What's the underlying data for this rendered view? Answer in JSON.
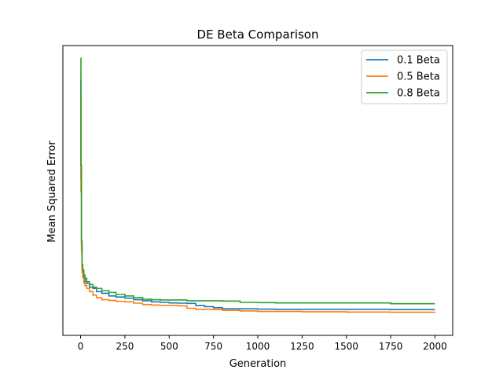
{
  "chart_data": {
    "type": "line",
    "title": "DE Beta Comparison",
    "xlabel": "Generation",
    "ylabel": "Mean Squared Error",
    "xlim": [
      -100,
      2100
    ],
    "ylim": [
      0,
      1
    ],
    "xticks": [
      0,
      250,
      500,
      750,
      1000,
      1250,
      1500,
      1750,
      2000
    ],
    "yticks_shown": false,
    "grid": false,
    "legend_position": "top-right",
    "series": [
      {
        "name": "0.1 Beta",
        "color": "#1f77b4",
        "x": [
          0,
          2,
          5,
          8,
          12,
          18,
          25,
          35,
          50,
          70,
          90,
          120,
          160,
          200,
          250,
          300,
          350,
          400,
          450,
          500,
          550,
          600,
          650,
          700,
          750,
          800,
          900,
          1000,
          1100,
          1250,
          1500,
          1750,
          2000
        ],
        "y": [
          0.92,
          0.55,
          0.3,
          0.22,
          0.2,
          0.18,
          0.165,
          0.158,
          0.145,
          0.14,
          0.128,
          0.122,
          0.112,
          0.108,
          0.104,
          0.098,
          0.094,
          0.09,
          0.088,
          0.086,
          0.085,
          0.084,
          0.076,
          0.072,
          0.068,
          0.064,
          0.064,
          0.063,
          0.062,
          0.062,
          0.062,
          0.061,
          0.061
        ]
      },
      {
        "name": "0.5 Beta",
        "color": "#ff7f0e",
        "x": [
          0,
          2,
          5,
          8,
          12,
          18,
          25,
          35,
          50,
          70,
          90,
          120,
          160,
          200,
          250,
          300,
          350,
          400,
          450,
          500,
          550,
          600,
          650,
          700,
          750,
          800,
          900,
          1000,
          1100,
          1250,
          1500,
          1750,
          2000
        ],
        "y": [
          0.85,
          0.5,
          0.28,
          0.2,
          0.18,
          0.16,
          0.15,
          0.14,
          0.128,
          0.115,
          0.105,
          0.098,
          0.095,
          0.092,
          0.09,
          0.085,
          0.08,
          0.078,
          0.077,
          0.077,
          0.075,
          0.066,
          0.062,
          0.062,
          0.061,
          0.058,
          0.056,
          0.054,
          0.054,
          0.053,
          0.052,
          0.051,
          0.05
        ]
      },
      {
        "name": "0.8 Beta",
        "color": "#2ca02c",
        "x": [
          0,
          2,
          5,
          8,
          12,
          18,
          25,
          35,
          50,
          70,
          90,
          120,
          160,
          200,
          250,
          300,
          350,
          400,
          450,
          500,
          550,
          600,
          650,
          700,
          750,
          800,
          900,
          1000,
          1100,
          1250,
          1500,
          1750,
          2000
        ],
        "y": [
          1.0,
          0.6,
          0.32,
          0.23,
          0.21,
          0.19,
          0.178,
          0.165,
          0.155,
          0.145,
          0.14,
          0.132,
          0.125,
          0.118,
          0.112,
          0.106,
          0.1,
          0.098,
          0.097,
          0.097,
          0.097,
          0.094,
          0.094,
          0.094,
          0.094,
          0.093,
          0.088,
          0.087,
          0.086,
          0.086,
          0.086,
          0.083,
          0.083
        ]
      }
    ]
  }
}
